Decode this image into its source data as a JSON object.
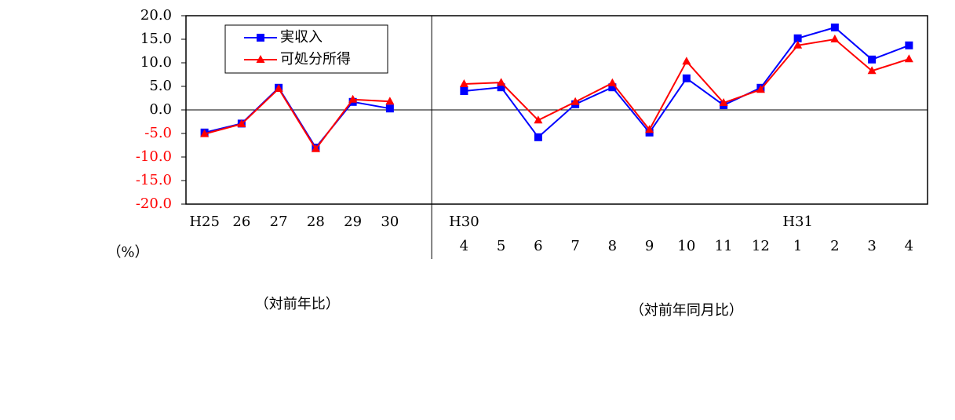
{
  "chart_data": {
    "type": "line",
    "unit_label": "（%）",
    "categories": [
      "H25",
      "26",
      "27",
      "28",
      "29",
      "30",
      null,
      "H30",
      null,
      null,
      null,
      null,
      null,
      null,
      null,
      null,
      "H31",
      null,
      null,
      null
    ],
    "categories_row2": [
      null,
      null,
      null,
      null,
      null,
      null,
      null,
      "4",
      "5",
      "6",
      "7",
      "8",
      "9",
      "10",
      "11",
      "12",
      "1",
      "2",
      "3",
      "4"
    ],
    "section_labels": [
      "（対前年比）",
      "（対前年同月比）"
    ],
    "series": [
      {
        "name": "実収入",
        "color": "#0000ff",
        "marker": "square",
        "values": [
          -4.8,
          -2.9,
          4.7,
          -8.0,
          1.7,
          0.3,
          null,
          4.0,
          4.8,
          -5.8,
          1.2,
          4.8,
          -4.8,
          6.7,
          1.0,
          4.7,
          15.2,
          17.5,
          10.7,
          13.7
        ]
      },
      {
        "name": "可処分所得",
        "color": "#ff0000",
        "marker": "triangle",
        "values": [
          -5.1,
          -3.0,
          4.5,
          -8.3,
          2.2,
          1.8,
          null,
          5.5,
          5.8,
          -2.2,
          1.7,
          5.7,
          -4.2,
          10.3,
          1.5,
          4.3,
          13.7,
          15.0,
          8.3,
          10.8
        ]
      }
    ],
    "ylim": [
      -20,
      20
    ],
    "yticks": [
      {
        "value": 20,
        "label": "20.0"
      },
      {
        "value": 15,
        "label": "15.0"
      },
      {
        "value": 10,
        "label": "10.0"
      },
      {
        "value": 5,
        "label": "5.0"
      },
      {
        "value": 0,
        "label": "0.0"
      },
      {
        "value": -5,
        "label": "-5.0"
      },
      {
        "value": -10,
        "label": "-10.0"
      },
      {
        "value": -15,
        "label": "-15.0"
      },
      {
        "value": -20,
        "label": "-20.0"
      }
    ],
    "negative_tick_color": "#ff0000",
    "zero_line": true,
    "grid": false,
    "legend": "upper left"
  }
}
